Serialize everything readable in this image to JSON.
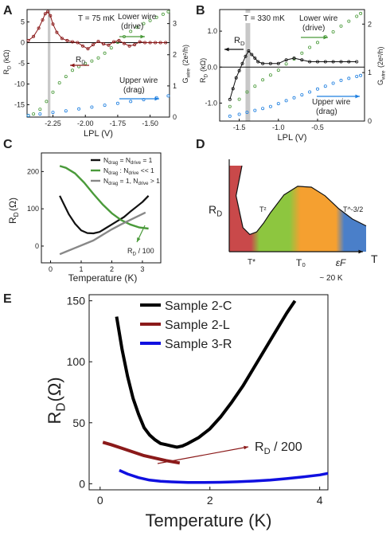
{
  "chart_data": [
    {
      "panel": "A",
      "type": "scatter",
      "annotation": "T = 75 mK",
      "xlabel": "LPL (V)",
      "ylabel": "R_D (kΩ)",
      "ylabel_right": "G_wire (2e²/h)",
      "xlim": [
        -2.45,
        -1.35
      ],
      "ylim": [
        -18,
        8
      ],
      "ylim_right": [
        0,
        3.45
      ],
      "x_ticks": [
        -2.25,
        -2.0,
        -1.75,
        -1.5
      ],
      "x_tick_labels": [
        "-2.25",
        "-2.00",
        "-1.75",
        "-1.50"
      ],
      "y_ticks": [
        5,
        0,
        -5,
        -10,
        -15
      ],
      "y_right_ticks": [
        0,
        1,
        2,
        3
      ],
      "highlight_band": [
        -2.29,
        -2.27
      ],
      "series": [
        {
          "name": "R_D",
          "axis": "left",
          "color": "#8b1a1a",
          "x": [
            -2.44,
            -2.4,
            -2.36,
            -2.33,
            -2.31,
            -2.29,
            -2.27,
            -2.25,
            -2.22,
            -2.18,
            -2.14,
            -2.1,
            -2.06,
            -2.02,
            -1.98,
            -1.94,
            -1.9,
            -1.86,
            -1.82,
            -1.78,
            -1.74,
            -1.7,
            -1.66,
            -1.62,
            -1.58,
            -1.54,
            -1.5,
            -1.46,
            -1.42,
            -1.38
          ],
          "y": [
            0.5,
            1.5,
            3.5,
            5.5,
            7.0,
            7.5,
            6.5,
            4.5,
            2.5,
            1.0,
            0.5,
            0.2,
            0.0,
            -0.8,
            -1.5,
            -0.5,
            0.3,
            -0.3,
            -0.6,
            0.2,
            0.5,
            -0.2,
            -0.8,
            -0.5,
            0.2,
            0.0,
            0.0,
            0.0,
            0.0,
            0.0
          ]
        },
        {
          "name": "Lower wire (drive)",
          "axis": "right",
          "color": "#4a9a3a",
          "x": [
            -2.44,
            -2.4,
            -2.35,
            -2.3,
            -2.25,
            -2.2,
            -2.15,
            -2.1,
            -2.05,
            -2.0,
            -1.95,
            -1.9,
            -1.85,
            -1.8,
            -1.75,
            -1.7,
            -1.65,
            -1.6,
            -1.55,
            -1.5,
            -1.45,
            -1.4,
            -1.36
          ],
          "y": [
            0.05,
            0.1,
            0.25,
            0.5,
            0.8,
            1.1,
            1.3,
            1.5,
            1.62,
            1.72,
            1.8,
            1.9,
            2.05,
            2.22,
            2.4,
            2.58,
            2.75,
            2.88,
            3.0,
            3.1,
            3.2,
            3.3,
            3.38
          ]
        },
        {
          "name": "Upper wire (drag)",
          "axis": "right",
          "color": "#1e7fe0",
          "x": [
            -2.44,
            -2.35,
            -2.25,
            -2.15,
            -2.05,
            -1.95,
            -1.85,
            -1.75,
            -1.65,
            -1.55,
            -1.45,
            -1.36
          ],
          "y": [
            0.05,
            0.1,
            0.15,
            0.2,
            0.26,
            0.32,
            0.38,
            0.44,
            0.5,
            0.56,
            0.62,
            0.68
          ]
        }
      ],
      "labels": {
        "drive": "Lower wire\n(drive)",
        "drag": "Upper wire\n(drag)",
        "rd": "R_D"
      }
    },
    {
      "panel": "B",
      "type": "scatter",
      "annotation": "T = 330 mK",
      "xlabel": "LPL (V)",
      "ylabel": "R_D (kΩ)",
      "ylabel_right": "G_wire (2e²/h)",
      "xlim": [
        -1.75,
        0.1
      ],
      "ylim": [
        -1.5,
        1.6
      ],
      "ylim_right": [
        0,
        2.3
      ],
      "x_ticks": [
        -1.5,
        -1.0,
        -0.5
      ],
      "x_tick_labels": [
        "-1.5",
        "-1.0",
        "-0.5"
      ],
      "y_ticks": [
        1.0,
        0.0,
        -1.0
      ],
      "y_right_ticks": [
        0,
        1,
        2
      ],
      "highlight_band": [
        -1.42,
        -1.36
      ],
      "series": [
        {
          "name": "R_D",
          "axis": "left",
          "color": "#111111",
          "x": [
            -1.62,
            -1.58,
            -1.54,
            -1.5,
            -1.46,
            -1.42,
            -1.38,
            -1.34,
            -1.3,
            -1.26,
            -1.2,
            -1.1,
            -1.0,
            -0.9,
            -0.8,
            -0.7,
            -0.6,
            -0.5,
            -0.4,
            -0.3,
            -0.2,
            -0.1,
            0.0
          ],
          "y": [
            -0.9,
            -0.6,
            -0.3,
            -0.1,
            0.1,
            0.3,
            0.45,
            0.35,
            0.25,
            0.15,
            0.1,
            0.1,
            0.1,
            0.2,
            0.25,
            0.2,
            0.15,
            0.15,
            0.15,
            0.15,
            0.15,
            0.15,
            0.15
          ]
        },
        {
          "name": "Lower wire (drive)",
          "axis": "right",
          "color": "#4a9a3a",
          "x": [
            -1.62,
            -1.5,
            -1.4,
            -1.3,
            -1.2,
            -1.1,
            -1.0,
            -0.9,
            -0.8,
            -0.7,
            -0.6,
            -0.5,
            -0.4,
            -0.3,
            -0.2,
            -0.1,
            0.0,
            0.05
          ],
          "y": [
            0.3,
            0.45,
            0.6,
            0.72,
            0.85,
            0.95,
            1.05,
            1.18,
            1.28,
            1.4,
            1.52,
            1.62,
            1.74,
            1.84,
            1.96,
            2.06,
            2.16,
            2.22
          ]
        },
        {
          "name": "Upper wire (drag)",
          "axis": "right",
          "color": "#1e7fe0",
          "x": [
            -1.62,
            -1.5,
            -1.4,
            -1.3,
            -1.2,
            -1.1,
            -1.0,
            -0.9,
            -0.8,
            -0.7,
            -0.6,
            -0.5,
            -0.4,
            -0.3,
            -0.2,
            -0.1,
            0.0,
            0.05
          ],
          "y": [
            0.1,
            0.14,
            0.18,
            0.22,
            0.26,
            0.3,
            0.36,
            0.42,
            0.48,
            0.54,
            0.6,
            0.66,
            0.72,
            0.78,
            0.84,
            0.88,
            0.92,
            0.94
          ]
        }
      ],
      "labels": {
        "drive": "Lower wire\n(drive)",
        "drag": "Upper wire\n(drag)",
        "rd": "R_D"
      }
    },
    {
      "panel": "C",
      "type": "scatter",
      "xlabel": "Temperature (K)",
      "ylabel": "R_D(Ω)",
      "xlim": [
        -0.3,
        3.6
      ],
      "ylim": [
        -45,
        250
      ],
      "x_ticks": [
        0,
        1,
        2,
        3
      ],
      "y_ticks": [
        200,
        100,
        0
      ],
      "legend_position": "top-right",
      "legend": [
        "N_drag = N_drive = 1",
        "N_drag : N_drive << 1",
        "N_drag = 1, N_drive > 1"
      ],
      "series": [
        {
          "name": "N_drag = N_drive = 1",
          "color": "#111111",
          "x": [
            0.3,
            0.45,
            0.6,
            0.8,
            1.0,
            1.2,
            1.4,
            1.6,
            1.8,
            2.0,
            2.2,
            2.4,
            2.6,
            2.8,
            3.0,
            3.2
          ],
          "y": [
            135,
            110,
            85,
            60,
            42,
            35,
            34,
            38,
            48,
            58,
            68,
            78,
            92,
            105,
            118,
            135
          ]
        },
        {
          "name": "N_drag : N_drive << 1",
          "color": "#4a9a3a",
          "x": [
            0.3,
            0.5,
            0.8,
            1.1,
            1.4,
            1.7,
            2.0,
            2.3,
            2.6,
            2.9,
            3.2
          ],
          "y": [
            215,
            210,
            195,
            170,
            140,
            112,
            88,
            70,
            58,
            50,
            47
          ]
        },
        {
          "name": "N_drag = 1, N_drive > 1",
          "color": "#888888",
          "x": [
            0.3,
            0.5,
            0.8,
            1.1,
            1.4,
            1.7,
            2.0,
            2.3,
            2.6,
            2.9,
            3.1
          ],
          "y": [
            -22,
            -15,
            -5,
            5,
            15,
            30,
            45,
            58,
            70,
            82,
            90
          ]
        }
      ],
      "annotation": "R_D / 100"
    },
    {
      "panel": "D",
      "type": "area",
      "xlabel": "T",
      "ylabel": "R_D",
      "x_ticks": [
        "T*",
        "T₀",
        "εF"
      ],
      "sub_label": "~ 20 K",
      "regions": [
        {
          "color": "#c9494a"
        },
        {
          "color": "#8dc63f",
          "label": "T²"
        },
        {
          "color": "#f5a030"
        },
        {
          "color": "#4a7fc9",
          "label": "T^-3/2"
        }
      ],
      "x": [
        0.0,
        0.05,
        0.1,
        0.15,
        0.2,
        0.25,
        0.3,
        0.4,
        0.5,
        0.6,
        0.7,
        0.8,
        0.9,
        1.0
      ],
      "y": [
        1.0,
        0.65,
        0.28,
        0.2,
        0.23,
        0.33,
        0.45,
        0.66,
        0.76,
        0.75,
        0.65,
        0.5,
        0.38,
        0.3
      ]
    },
    {
      "panel": "E",
      "type": "scatter",
      "xlabel": "Temperature (K)",
      "ylabel": "R_D(Ω)",
      "xlim": [
        -0.2,
        4.15
      ],
      "ylim": [
        -5,
        155
      ],
      "x_ticks": [
        0,
        2,
        4
      ],
      "y_ticks": [
        150,
        100,
        50,
        0
      ],
      "legend_position": "top-left",
      "legend": [
        "Sample 2-C",
        "Sample 2-L",
        "Sample 3-R"
      ],
      "annotation": "R_D / 200",
      "series": [
        {
          "name": "Sample 2-C",
          "color": "#000000",
          "x": [
            0.3,
            0.4,
            0.5,
            0.6,
            0.7,
            0.8,
            0.9,
            1.0,
            1.1,
            1.2,
            1.3,
            1.4,
            1.5,
            1.6,
            1.8,
            2.0,
            2.2,
            2.4,
            2.6,
            2.8,
            3.0,
            3.2,
            3.4,
            3.55
          ],
          "y": [
            137,
            110,
            88,
            70,
            57,
            46,
            40,
            36,
            33,
            32,
            31,
            30,
            31,
            33,
            38,
            45,
            55,
            67,
            80,
            95,
            110,
            125,
            140,
            150
          ]
        },
        {
          "name": "Sample 2-L",
          "color": "#8b1a1a",
          "x": [
            0.05,
            0.2,
            0.4,
            0.6,
            0.8,
            1.0,
            1.2,
            1.45
          ],
          "y": [
            34,
            32,
            29,
            26,
            23,
            21,
            19,
            17
          ]
        },
        {
          "name": "Sample 3-R",
          "color": "#1010e0",
          "x": [
            0.35,
            0.5,
            0.7,
            0.9,
            1.1,
            1.3,
            1.6,
            1.9,
            2.2,
            2.5,
            2.8,
            3.1,
            3.4,
            3.7,
            4.0,
            4.15
          ],
          "y": [
            11,
            8,
            5,
            3,
            2,
            1.5,
            1,
            1,
            1.2,
            1.6,
            2.2,
            3,
            4.2,
            5.6,
            7.2,
            8.5
          ]
        }
      ]
    }
  ]
}
